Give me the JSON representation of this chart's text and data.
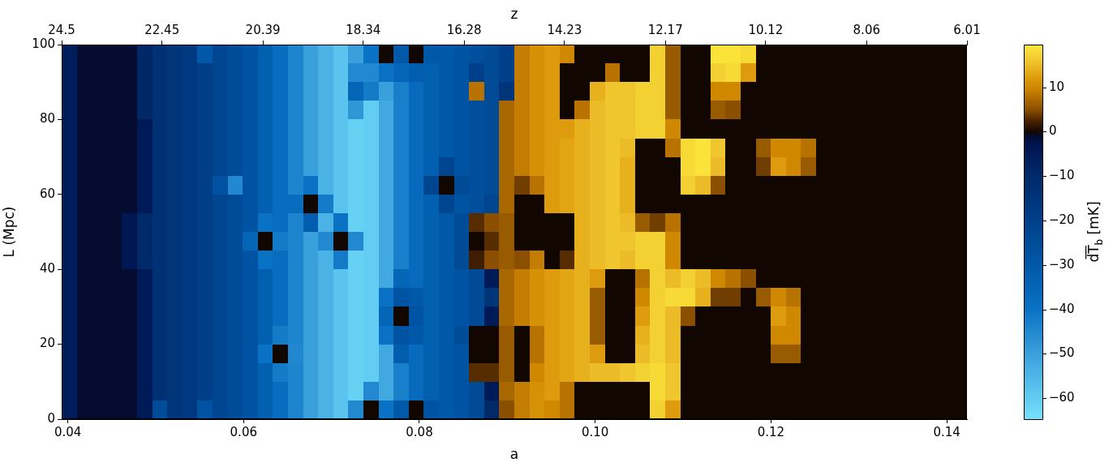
{
  "chart_data": {
    "type": "heatmap",
    "x": [
      0.04016,
      0.04188,
      0.04359,
      0.04531,
      0.04703,
      0.04874,
      0.05046,
      0.05218,
      0.05389,
      0.05561,
      0.05733,
      0.05904,
      0.06076,
      0.06248,
      0.06419,
      0.06591,
      0.06763,
      0.06934,
      0.07106,
      0.07278,
      0.07449,
      0.07621,
      0.07793,
      0.07964,
      0.08136,
      0.08308,
      0.08479,
      0.08651,
      0.08823,
      0.08994,
      0.09166,
      0.09338,
      0.09509,
      0.09681,
      0.09853,
      0.10024,
      0.10196,
      0.10368,
      0.10539,
      0.10711,
      0.10883,
      0.11054,
      0.11226,
      0.11398,
      0.11569,
      0.11741,
      0.11913,
      0.12084,
      0.12256,
      0.12428,
      0.12599,
      0.12771,
      0.12943,
      0.13114,
      0.13286,
      0.13458,
      0.13629,
      0.13801,
      0.13973,
      0.14144
    ],
    "cells": [
      [
        -6,
        -1,
        -1,
        -1,
        -1,
        -9,
        -13,
        -15,
        -17,
        -30,
        -22,
        -25,
        -28,
        -33,
        -38,
        -44,
        -50,
        -54,
        -58,
        -50,
        -40,
        0,
        -30,
        0,
        -30,
        -30,
        -28,
        -26,
        -24,
        -20,
        9,
        11,
        12,
        10,
        0,
        0,
        0,
        0,
        0,
        17,
        6,
        0,
        0,
        19,
        19,
        18,
        0,
        0,
        0,
        0,
        0,
        0,
        0,
        0,
        0,
        0,
        0,
        0,
        0,
        0
      ],
      [
        -6,
        -1,
        -1,
        -1,
        -1,
        -9,
        -13,
        -15,
        -17,
        -19,
        -22,
        -25,
        -28,
        -33,
        -38,
        -44,
        -50,
        -54,
        -58,
        -45,
        -45,
        -40,
        -35,
        -32,
        -33,
        -30,
        -28,
        -20,
        -24,
        -20,
        9,
        11,
        12,
        0,
        0,
        0,
        8,
        0,
        0,
        17,
        6,
        0,
        0,
        17,
        18,
        12,
        0,
        0,
        0,
        0,
        0,
        0,
        0,
        0,
        0,
        0,
        0,
        0,
        0,
        0
      ],
      [
        -6,
        -1,
        -1,
        -1,
        -1,
        -9,
        -13,
        -15,
        -17,
        -19,
        -22,
        -25,
        -28,
        -33,
        -38,
        -44,
        -50,
        -54,
        -58,
        -35,
        -42,
        -50,
        -43,
        -37,
        -33,
        -30,
        -28,
        8,
        -24,
        -15,
        9,
        11,
        12,
        0,
        0,
        14,
        16,
        16,
        17,
        17,
        6,
        0,
        0,
        10,
        10,
        0,
        0,
        0,
        0,
        0,
        0,
        0,
        0,
        0,
        0,
        0,
        0,
        0,
        0,
        0
      ],
      [
        -6,
        -1,
        -1,
        -1,
        -1,
        -9,
        -13,
        -15,
        -17,
        -19,
        -22,
        -25,
        -28,
        -33,
        -38,
        -44,
        -50,
        -54,
        -58,
        -48,
        -60,
        -52,
        -43,
        -37,
        -33,
        -30,
        -28,
        -26,
        -24,
        7,
        9,
        11,
        12,
        0,
        8,
        15,
        16,
        16,
        17,
        17,
        6,
        0,
        0,
        6,
        5,
        0,
        0,
        0,
        0,
        0,
        0,
        0,
        0,
        0,
        0,
        0,
        0,
        0,
        0,
        0
      ],
      [
        -6,
        -1,
        -1,
        -1,
        -1,
        -5,
        -13,
        -15,
        -17,
        -19,
        -22,
        -25,
        -28,
        -33,
        -38,
        -44,
        -50,
        -54,
        -58,
        -61,
        -60,
        -52,
        -43,
        -37,
        -33,
        -30,
        -28,
        -26,
        -24,
        7,
        9,
        11,
        12,
        12,
        14,
        15,
        16,
        16,
        17,
        17,
        10,
        0,
        0,
        0,
        0,
        0,
        0,
        0,
        0,
        0,
        0,
        0,
        0,
        0,
        0,
        0,
        0,
        0,
        0,
        0
      ],
      [
        -6,
        -1,
        -1,
        -1,
        -1,
        -5,
        -13,
        -15,
        -17,
        -19,
        -22,
        -25,
        -28,
        -33,
        -38,
        -44,
        -50,
        -54,
        -58,
        -61,
        -60,
        -52,
        -43,
        -37,
        -33,
        -30,
        -28,
        -26,
        -24,
        7,
        9,
        11,
        12,
        13,
        14,
        15,
        16,
        15,
        0,
        0,
        8,
        18,
        19,
        16,
        0,
        0,
        6,
        10,
        10,
        8,
        0,
        0,
        0,
        0,
        0,
        0,
        0,
        0,
        0,
        0
      ],
      [
        -6,
        -1,
        -1,
        -1,
        -1,
        -5,
        -13,
        -15,
        -17,
        -19,
        -22,
        -25,
        -28,
        -33,
        -38,
        -44,
        -50,
        -54,
        -58,
        -61,
        -60,
        -52,
        -43,
        -37,
        -33,
        -22,
        -28,
        -26,
        -24,
        7,
        9,
        11,
        12,
        13,
        14,
        15,
        16,
        14,
        0,
        0,
        0,
        18,
        19,
        15,
        0,
        0,
        4,
        12,
        10,
        6,
        0,
        0,
        0,
        0,
        0,
        0,
        0,
        0,
        0,
        0
      ],
      [
        -6,
        -1,
        -1,
        -1,
        -1,
        -5,
        -13,
        -15,
        -17,
        -19,
        -27,
        -45,
        -28,
        -33,
        -38,
        -44,
        -40,
        -54,
        -58,
        -61,
        -60,
        -52,
        -43,
        -37,
        -22,
        0,
        -24,
        -26,
        -24,
        7,
        4,
        8,
        12,
        13,
        14,
        15,
        16,
        14,
        0,
        0,
        0,
        17,
        15,
        5,
        0,
        0,
        0,
        0,
        0,
        0,
        0,
        0,
        0,
        0,
        0,
        0,
        0,
        0,
        0,
        0
      ],
      [
        -6,
        -1,
        -1,
        -1,
        -1,
        -5,
        -13,
        -15,
        -17,
        -19,
        -22,
        -25,
        -28,
        -33,
        -38,
        -38,
        0,
        -42,
        -58,
        -61,
        -60,
        -52,
        -43,
        -37,
        -33,
        -22,
        -28,
        -26,
        -22,
        7,
        0,
        0,
        12,
        13,
        14,
        15,
        16,
        14,
        0,
        0,
        0,
        0,
        0,
        0,
        0,
        0,
        0,
        0,
        0,
        0,
        0,
        0,
        0,
        0,
        0,
        0,
        0,
        0,
        0,
        0
      ],
      [
        -6,
        -1,
        -1,
        -1,
        -4,
        -10,
        -13,
        -15,
        -17,
        -19,
        -22,
        -25,
        -28,
        -40,
        -38,
        -44,
        -32,
        -54,
        -40,
        -61,
        -60,
        -52,
        -43,
        -37,
        -33,
        -30,
        -25,
        3,
        5,
        6,
        0,
        0,
        0,
        0,
        14,
        15,
        16,
        15,
        6,
        4,
        8,
        0,
        0,
        0,
        0,
        0,
        0,
        0,
        0,
        0,
        0,
        0,
        0,
        0,
        0,
        0,
        0,
        0,
        0,
        0
      ],
      [
        -6,
        -1,
        -1,
        -1,
        -4,
        -10,
        -13,
        -15,
        -17,
        -19,
        -22,
        -25,
        -35,
        0,
        -42,
        -44,
        -50,
        -45,
        0,
        -45,
        -60,
        -52,
        -43,
        -37,
        -33,
        -30,
        -24,
        0,
        3,
        6,
        0,
        0,
        0,
        0,
        14,
        15,
        16,
        16,
        17,
        17,
        10,
        0,
        0,
        0,
        0,
        0,
        0,
        0,
        0,
        0,
        0,
        0,
        0,
        0,
        0,
        0,
        0,
        0,
        0,
        0
      ],
      [
        -6,
        -1,
        -1,
        -1,
        -4,
        -10,
        -13,
        -15,
        -17,
        -19,
        -22,
        -25,
        -28,
        -40,
        -38,
        -44,
        -50,
        -54,
        -42,
        -61,
        -60,
        -52,
        -43,
        -37,
        -33,
        -30,
        -24,
        2,
        5,
        6,
        5,
        9,
        0,
        3,
        14,
        15,
        16,
        15,
        17,
        17,
        10,
        0,
        0,
        0,
        0,
        0,
        0,
        0,
        0,
        0,
        0,
        0,
        0,
        0,
        0,
        0,
        0,
        0,
        0,
        0
      ],
      [
        -6,
        -1,
        -1,
        -1,
        -1,
        -5,
        -13,
        -15,
        -17,
        -19,
        -22,
        -25,
        -28,
        -33,
        -38,
        -44,
        -50,
        -54,
        -58,
        -61,
        -60,
        -52,
        -35,
        -37,
        -33,
        -30,
        -28,
        -24,
        -5,
        7,
        9,
        11,
        12,
        13,
        14,
        12,
        0,
        0,
        8,
        17,
        15,
        17,
        15,
        10,
        8,
        5,
        0,
        0,
        0,
        0,
        0,
        0,
        0,
        0,
        0,
        0,
        0,
        0,
        0,
        0
      ],
      [
        -6,
        -1,
        -1,
        -1,
        -1,
        -5,
        -13,
        -15,
        -17,
        -19,
        -22,
        -25,
        -28,
        -33,
        -38,
        -44,
        -50,
        -54,
        -58,
        -61,
        -60,
        -40,
        -28,
        -30,
        -33,
        -30,
        -28,
        -24,
        -15,
        7,
        9,
        11,
        12,
        13,
        14,
        6,
        0,
        0,
        10,
        17,
        18,
        18,
        14,
        4,
        4,
        0,
        6,
        10,
        8,
        0,
        0,
        0,
        0,
        0,
        0,
        0,
        0,
        0,
        0,
        0
      ],
      [
        -6,
        -1,
        -1,
        -1,
        -1,
        -5,
        -13,
        -15,
        -17,
        -19,
        -22,
        -25,
        -28,
        -33,
        -38,
        -44,
        -50,
        -54,
        -58,
        -61,
        -60,
        -35,
        0,
        -28,
        -33,
        -30,
        -28,
        -24,
        -5,
        7,
        9,
        11,
        12,
        13,
        14,
        6,
        0,
        0,
        12,
        17,
        15,
        5,
        0,
        0,
        0,
        0,
        0,
        12,
        10,
        0,
        0,
        0,
        0,
        0,
        0,
        0,
        0,
        0,
        0,
        0
      ],
      [
        -6,
        -1,
        -1,
        -1,
        -1,
        -5,
        -13,
        -15,
        -17,
        -19,
        -22,
        -25,
        -28,
        -33,
        -42,
        -44,
        -50,
        -54,
        -58,
        -61,
        -60,
        -40,
        -28,
        -30,
        -33,
        -30,
        -25,
        0,
        0,
        6,
        0,
        8,
        12,
        13,
        14,
        6,
        0,
        0,
        14,
        17,
        15,
        0,
        0,
        0,
        0,
        0,
        0,
        10,
        10,
        0,
        0,
        0,
        0,
        0,
        0,
        0,
        0,
        0,
        0,
        0
      ],
      [
        -6,
        -1,
        -1,
        -1,
        -1,
        -5,
        -13,
        -15,
        -17,
        -19,
        -22,
        -25,
        -28,
        -40,
        0,
        -45,
        -50,
        -54,
        -58,
        -61,
        -60,
        -52,
        -32,
        -37,
        -33,
        -30,
        -28,
        0,
        0,
        6,
        0,
        8,
        12,
        13,
        14,
        12,
        0,
        0,
        15,
        17,
        15,
        0,
        0,
        0,
        0,
        0,
        0,
        6,
        6,
        0,
        0,
        0,
        0,
        0,
        0,
        0,
        0,
        0,
        0,
        0
      ],
      [
        -6,
        -1,
        -1,
        -1,
        -1,
        -5,
        -13,
        -15,
        -17,
        -19,
        -22,
        -25,
        -28,
        -33,
        -42,
        -44,
        -50,
        -54,
        -58,
        -61,
        -60,
        -52,
        -43,
        -37,
        -33,
        -30,
        -28,
        3,
        3,
        6,
        0,
        10,
        12,
        13,
        14,
        15,
        15,
        16,
        17,
        18,
        16,
        0,
        0,
        0,
        0,
        0,
        0,
        0,
        0,
        0,
        0,
        0,
        0,
        0,
        0,
        0,
        0,
        0,
        0,
        0
      ],
      [
        -6,
        -1,
        -1,
        -1,
        -1,
        -5,
        -13,
        -15,
        -17,
        -19,
        -22,
        -25,
        -28,
        -33,
        -38,
        -44,
        -50,
        -54,
        -58,
        -61,
        -45,
        -52,
        -43,
        -37,
        -33,
        -30,
        -28,
        -24,
        -5,
        7,
        9,
        11,
        12,
        8,
        0,
        0,
        0,
        0,
        0,
        18,
        16,
        0,
        0,
        0,
        0,
        0,
        0,
        0,
        0,
        0,
        0,
        0,
        0,
        0,
        0,
        0,
        0,
        0,
        0,
        0
      ],
      [
        -6,
        -1,
        -1,
        -1,
        -1,
        -5,
        -25,
        -15,
        -17,
        -28,
        -22,
        -25,
        -28,
        -33,
        -38,
        -44,
        -50,
        -54,
        -58,
        -45,
        0,
        -40,
        -30,
        0,
        -28,
        -30,
        -28,
        -24,
        -10,
        5,
        9,
        11,
        10,
        8,
        0,
        0,
        0,
        0,
        0,
        17,
        12,
        0,
        0,
        0,
        0,
        0,
        0,
        0,
        0,
        0,
        0,
        0,
        0,
        0,
        0,
        0,
        0,
        0,
        0,
        0
      ]
    ],
    "xlim": [
      0.0393,
      0.1423
    ],
    "xticks": [
      0.04,
      0.06,
      0.08,
      {
        "value": 0.1,
        "label": "0.10"
      },
      0.12,
      0.14
    ],
    "xlabel": "a",
    "x2lim": [
      24.5,
      6.01
    ],
    "x2ticks": [
      24.5,
      22.45,
      20.39,
      18.34,
      16.28,
      14.23,
      12.17,
      10.12,
      8.06,
      6.01
    ],
    "x2label": "z",
    "ylim": [
      0,
      100
    ],
    "yticks": [
      0,
      20,
      40,
      60,
      80,
      100
    ],
    "ylabel": "L (Mpc)",
    "clim": [
      -64.7,
      19.6
    ],
    "cticks": [
      10,
      0,
      {
        "value": -10,
        "label": "−10"
      },
      {
        "value": -20,
        "label": "−20"
      },
      {
        "value": -30,
        "label": "−30"
      },
      {
        "value": -40,
        "label": "−40"
      },
      {
        "value": -50,
        "label": "−50"
      },
      {
        "value": -60,
        "label": "−60"
      }
    ],
    "clabel": "d̅T̅$_{b}$ [mK]"
  }
}
